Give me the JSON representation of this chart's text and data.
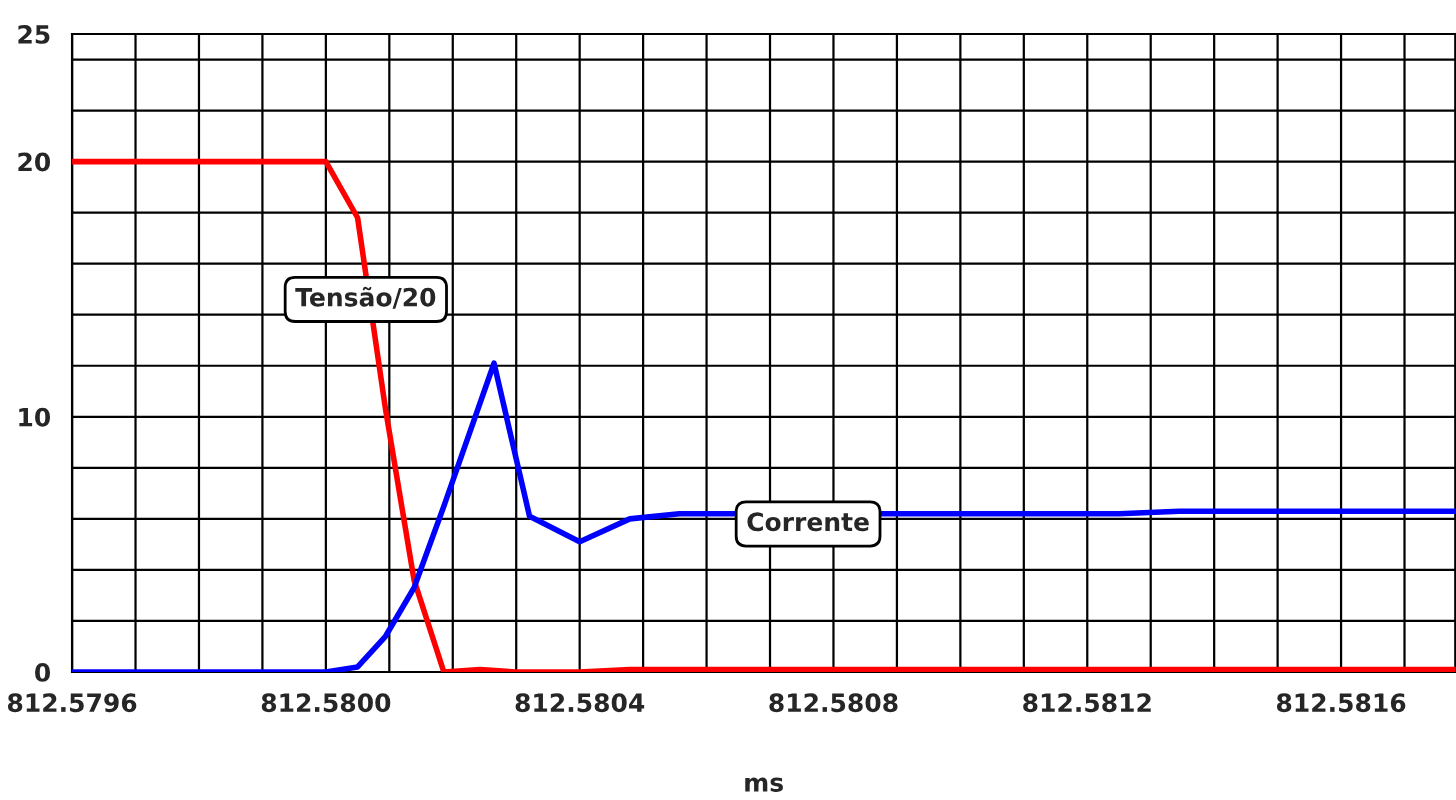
{
  "chart_data": {
    "type": "line",
    "xlabel": "ms",
    "legend": false,
    "grid": true,
    "marker": "none",
    "line_style": "solid",
    "xlim": [
      812.5796,
      812.58178
    ],
    "xticks": [
      812.5796,
      {
        "value": 812.5797,
        "label": null
      },
      {
        "value": 812.5798,
        "label": null
      },
      {
        "value": 812.5799,
        "label": null
      },
      {
        "value": 812.58,
        "label": "812.5800"
      },
      {
        "value": 812.5801,
        "label": null
      },
      {
        "value": 812.5802,
        "label": null
      },
      {
        "value": 812.5803,
        "label": null
      },
      812.5804,
      {
        "value": 812.5805,
        "label": null
      },
      {
        "value": 812.5806,
        "label": null
      },
      {
        "value": 812.5807,
        "label": null
      },
      812.5808,
      {
        "value": 812.5809,
        "label": null
      },
      {
        "value": 812.581,
        "label": null
      },
      {
        "value": 812.5811,
        "label": null
      },
      812.5812,
      {
        "value": 812.5813,
        "label": null
      },
      {
        "value": 812.5814,
        "label": null
      },
      {
        "value": 812.5815,
        "label": null
      },
      812.5816,
      {
        "value": 812.5817,
        "label": null
      }
    ],
    "ylim": [
      0,
      25
    ],
    "yticks": [
      0,
      {
        "value": 2,
        "label": null
      },
      {
        "value": 4,
        "label": null
      },
      {
        "value": 6,
        "label": null
      },
      {
        "value": 8,
        "label": null
      },
      10,
      {
        "value": 12,
        "label": null
      },
      {
        "value": 14,
        "label": null
      },
      {
        "value": 16,
        "label": null
      },
      {
        "value": 18,
        "label": null
      },
      20,
      {
        "value": 22,
        "label": null
      },
      {
        "value": 24,
        "label": null
      },
      25
    ],
    "series": [
      {
        "color": "#ff0000",
        "x": [
          812.5796,
          812.58,
          812.58005,
          812.580094,
          812.580139,
          812.580186,
          812.580243,
          812.580299,
          812.5804,
          812.580479,
          812.58178
        ],
        "values": [
          20,
          20,
          17.8,
          10.3,
          3.6,
          0,
          0.1,
          0,
          0,
          0.1,
          0.1
        ]
      },
      {
        "color": "#0000ff",
        "x": [
          812.5796,
          812.58,
          812.58005,
          812.580094,
          812.580139,
          812.580186,
          812.580265,
          812.580321,
          812.5804,
          812.580479,
          812.580557,
          812.580904,
          812.58125,
          812.581345,
          812.58178
        ],
        "values": [
          0,
          0,
          0.2,
          1.4,
          3.3,
          6.5,
          12.1,
          6.1,
          5.1,
          6,
          6.2,
          6.2,
          6.2,
          6.3,
          6.3
        ]
      }
    ],
    "annotations": [
      {
        "text": "Tensão/20",
        "x": 812.580063,
        "y": 14.6
      },
      {
        "text": "Corrente",
        "x": 812.58076,
        "y": 5.8
      }
    ]
  }
}
